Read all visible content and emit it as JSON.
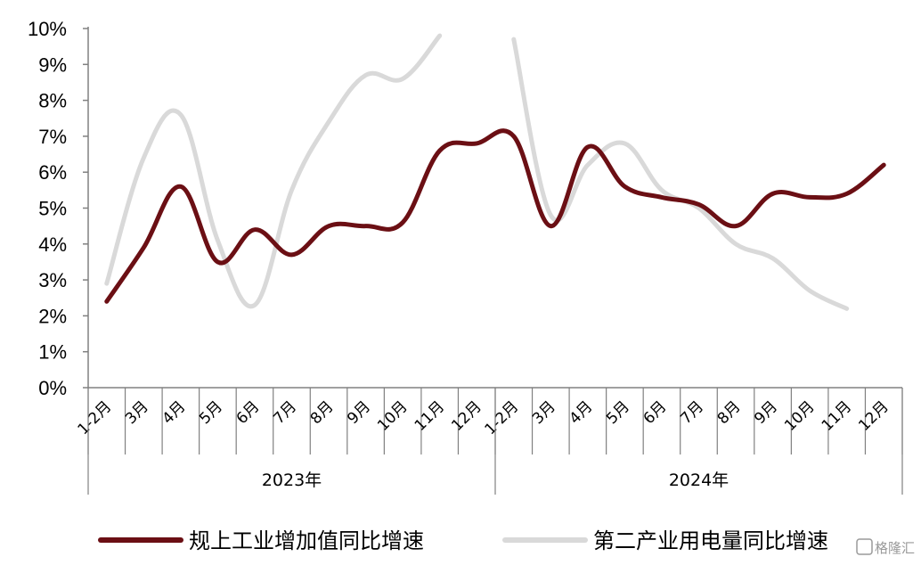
{
  "chart_data": {
    "type": "line",
    "y_ticks": [
      "0%",
      "1%",
      "2%",
      "3%",
      "4%",
      "5%",
      "6%",
      "7%",
      "8%",
      "9%",
      "10%"
    ],
    "ylim": [
      0,
      10
    ],
    "categories": [
      "1-2月",
      "3月",
      "4月",
      "5月",
      "6月",
      "7月",
      "8月",
      "9月",
      "10月",
      "11月",
      "12月",
      "1-2月",
      "3月",
      "4月",
      "5月",
      "6月",
      "7月",
      "8月",
      "9月",
      "10月",
      "11月",
      "12月"
    ],
    "year_groups": [
      {
        "label": "2023年",
        "start": 0,
        "end": 10
      },
      {
        "label": "2024年",
        "start": 11,
        "end": 21
      }
    ],
    "series": [
      {
        "name": "规上工业增加值同比增速",
        "color": "#6b0f14",
        "values": [
          2.4,
          3.9,
          5.6,
          3.5,
          4.4,
          3.7,
          4.5,
          4.5,
          4.6,
          6.6,
          6.8,
          7.0,
          4.5,
          6.7,
          5.6,
          5.3,
          5.1,
          4.5,
          5.4,
          5.3,
          5.4,
          6.2
        ]
      },
      {
        "name": "第二产业用电量同比增速",
        "color": "#d9d9d9",
        "values": [
          2.9,
          6.4,
          7.6,
          4.1,
          2.3,
          5.5,
          7.4,
          8.7,
          8.6,
          9.8,
          null,
          9.7,
          4.8,
          6.2,
          6.8,
          5.5,
          5.0,
          4.0,
          3.6,
          2.7,
          2.2,
          null
        ]
      }
    ],
    "legend_position": "bottom",
    "grid": false,
    "watermark": "格隆汇"
  }
}
